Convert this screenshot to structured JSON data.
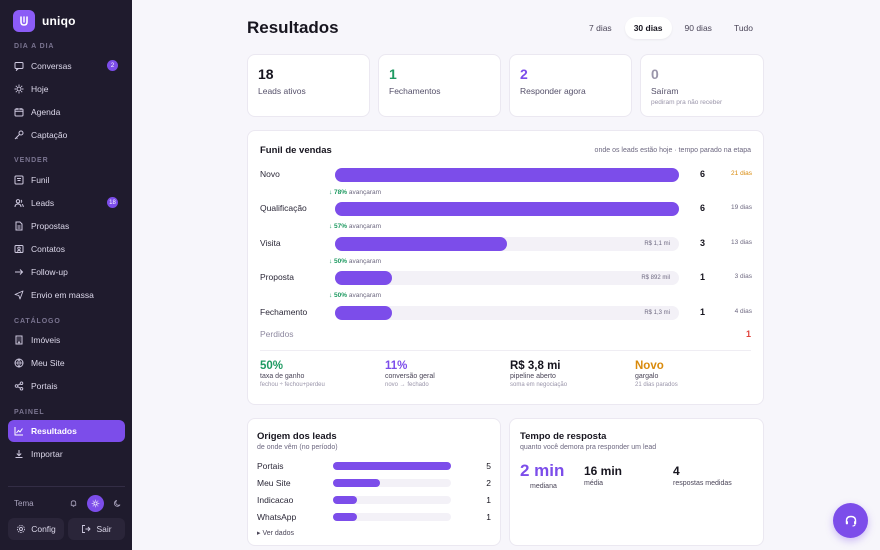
{
  "brand": {
    "name": "uniqo"
  },
  "sidebar": {
    "sections": [
      {
        "label": "DIA A DIA"
      },
      {
        "label": "VENDER"
      },
      {
        "label": "CATÁLOGO"
      },
      {
        "label": "PAINEL"
      }
    ],
    "items": [
      {
        "label": "Conversas",
        "icon": "chat-icon",
        "badge": "2"
      },
      {
        "label": "Hoje",
        "icon": "sun-icon"
      },
      {
        "label": "Agenda",
        "icon": "calendar-icon"
      },
      {
        "label": "Captação",
        "icon": "key-icon"
      },
      {
        "label": "Funil",
        "icon": "funnel-icon"
      },
      {
        "label": "Leads",
        "icon": "users-icon",
        "badge": "18"
      },
      {
        "label": "Propostas",
        "icon": "document-icon"
      },
      {
        "label": "Contatos",
        "icon": "contact-card-icon"
      },
      {
        "label": "Follow-up",
        "icon": "follow-up-icon"
      },
      {
        "label": "Envio em massa",
        "icon": "send-icon"
      },
      {
        "label": "Imóveis",
        "icon": "building-icon"
      },
      {
        "label": "Meu Site",
        "icon": "globe-icon"
      },
      {
        "label": "Portais",
        "icon": "share-icon"
      },
      {
        "label": "Resultados",
        "icon": "chart-icon",
        "active": true
      },
      {
        "label": "Importar",
        "icon": "download-icon"
      }
    ],
    "theme_label": "Tema",
    "config_label": "Config",
    "logout_label": "Sair"
  },
  "header": {
    "title": "Resultados",
    "periods": [
      "7 dias",
      "30 dias",
      "90 dias",
      "Tudo"
    ],
    "active_period": "30 dias"
  },
  "stats": [
    {
      "value": "18",
      "label": "Leads ativos",
      "color": "#17151f"
    },
    {
      "value": "1",
      "label": "Fechamentos",
      "color": "#1e9a61"
    },
    {
      "value": "2",
      "label": "Responder agora",
      "color": "#7c4dea"
    },
    {
      "value": "0",
      "label": "Saíram",
      "sub": "pediram pra não receber",
      "color": "#9a95aa"
    }
  ],
  "funnel": {
    "title": "Funil de vendas",
    "subtitle": "onde os leads estão hoje · tempo parado na etapa",
    "stages": [
      {
        "label": "Novo",
        "count": "6",
        "days": "21 dias",
        "value": "",
        "fill": 1.0,
        "warn": true
      },
      {
        "label": "Qualificação",
        "count": "6",
        "days": "19 dias",
        "value": "",
        "fill": 1.0
      },
      {
        "label": "Visita",
        "count": "3",
        "days": "13 dias",
        "value": "R$ 1,1 mi",
        "fill": 0.5
      },
      {
        "label": "Proposta",
        "count": "1",
        "days": "3 dias",
        "value": "R$ 892 mil",
        "fill": 0.167
      },
      {
        "label": "Fechamento",
        "count": "1",
        "days": "4 dias",
        "value": "R$ 1,3 mi",
        "fill": 0.167
      }
    ],
    "conversions": [
      {
        "pct": "↓ 78%",
        "text": "avançaram"
      },
      {
        "pct": "↓ 57%",
        "text": "avançaram"
      },
      {
        "pct": "↓ 50%",
        "text": "avançaram"
      },
      {
        "pct": "↓ 50%",
        "text": "avançaram"
      }
    ],
    "lost": {
      "label": "Perdidos",
      "count": "1"
    },
    "kpis": [
      {
        "value": "50%",
        "label": "taxa de ganho",
        "sub": "fechou ÷ fechou+perdeu",
        "color": "#1e9a61"
      },
      {
        "value": "11%",
        "label": "conversão geral",
        "sub": "novo → fechado",
        "color": "#7c4dea"
      },
      {
        "value": "R$ 3,8 mi",
        "label": "pipeline aberto",
        "sub": "soma em negociação",
        "color": "#17151f"
      },
      {
        "value": "Novo",
        "label": "gargalo",
        "sub": "21 dias parados",
        "color": "#d98a0b"
      }
    ]
  },
  "origins": {
    "title": "Origem dos leads",
    "subtitle": "de onde vêm (no período)",
    "rows": [
      {
        "label": "Portais",
        "count": "5",
        "fill": 1.0
      },
      {
        "label": "Meu Site",
        "count": "2",
        "fill": 0.4
      },
      {
        "label": "Indicacao",
        "count": "1",
        "fill": 0.2
      },
      {
        "label": "WhatsApp",
        "count": "1",
        "fill": 0.2
      }
    ],
    "see_data": "▸ Ver dados"
  },
  "response": {
    "title": "Tempo de resposta",
    "subtitle": "quanto você demora pra responder um lead",
    "median_value": "2 min",
    "median_label": "mediana",
    "avg_value": "16 min",
    "avg_label": "média",
    "count_value": "4",
    "count_label": "respostas medidas"
  }
}
